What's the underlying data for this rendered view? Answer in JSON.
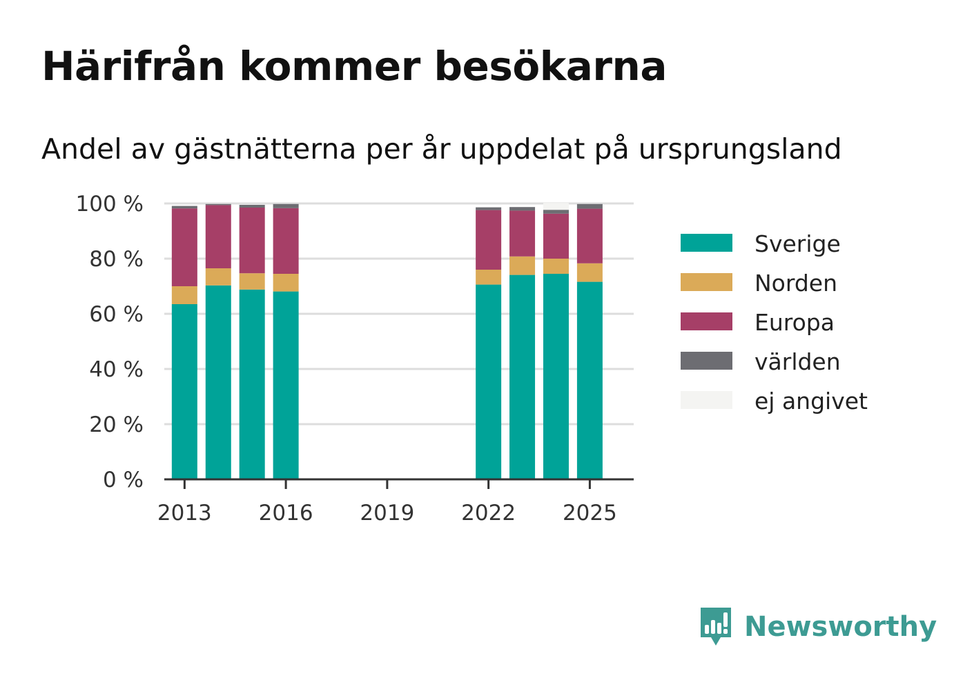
{
  "title": "Härifrån kommer besökarna",
  "subtitle": "Andel av gästnätterna per år uppdelat på ursprungsland",
  "brand": {
    "name": "Newsworthy",
    "icon": "newsworthy-logo-icon",
    "color": "#3d9b93"
  },
  "chart_data": {
    "type": "bar",
    "stacked": true,
    "x": [
      2013,
      2014,
      2015,
      2016,
      2022,
      2023,
      2024,
      2025
    ],
    "x_ticks": [
      "2013",
      "2016",
      "2019",
      "2022",
      "2025"
    ],
    "x_range": [
      2012.4,
      2026.3
    ],
    "y_ticks": [
      "0 %",
      "20 %",
      "40 %",
      "60 %",
      "80 %",
      "100 %"
    ],
    "ylim": [
      0,
      100
    ],
    "grid": true,
    "legend_position": "right",
    "series": [
      {
        "name": "Sverige",
        "color": "#00a398",
        "values": [
          63.5,
          70.3,
          68.8,
          68.1,
          70.6,
          74.1,
          74.5,
          71.6
        ]
      },
      {
        "name": "Norden",
        "color": "#dbaa58",
        "values": [
          6.5,
          6.2,
          5.9,
          6.4,
          5.4,
          6.7,
          5.5,
          6.7
        ]
      },
      {
        "name": "Europa",
        "color": "#a63f67",
        "values": [
          28.2,
          22.9,
          23.8,
          23.8,
          21.6,
          16.6,
          16.3,
          19.8
        ]
      },
      {
        "name": "världen",
        "color": "#6d6d72",
        "values": [
          0.9,
          0.4,
          1.0,
          1.5,
          1.0,
          1.3,
          1.4,
          1.7
        ]
      },
      {
        "name": "ej angivet",
        "color": "#f4f4f2",
        "values": [
          0.0,
          0.0,
          0.0,
          0.0,
          0.0,
          0.0,
          2.5,
          0.0
        ]
      }
    ]
  }
}
